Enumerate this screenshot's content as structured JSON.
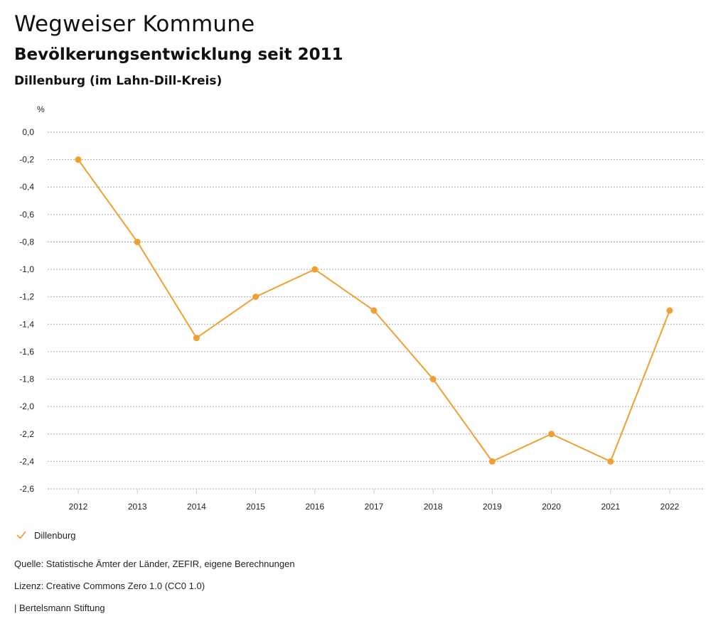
{
  "header": {
    "title": "Wegweiser Kommune",
    "subtitle": "Bevölkerungsentwicklung seit 2011",
    "region": "Dillenburg (im Lahn-Dill-Kreis)"
  },
  "colors": {
    "series": "#F0A030",
    "grid": "#aaaaaa",
    "text": "#222222"
  },
  "chart_data": {
    "type": "line",
    "title": "Bevölkerungsentwicklung seit 2011",
    "xlabel": "",
    "ylabel": "%",
    "ylim": [
      -2.6,
      0.0
    ],
    "yticks": [
      "0,0",
      "-0,2",
      "-0,4",
      "-0,6",
      "-0,8",
      "-1,0",
      "-1,2",
      "-1,4",
      "-1,6",
      "-1,8",
      "-2,0",
      "-2,2",
      "-2,4",
      "-2,6"
    ],
    "ytick_values": [
      0.0,
      -0.2,
      -0.4,
      -0.6,
      -0.8,
      -1.0,
      -1.2,
      -1.4,
      -1.6,
      -1.8,
      -2.0,
      -2.2,
      -2.4,
      -2.6
    ],
    "x": [
      "2012",
      "2013",
      "2014",
      "2015",
      "2016",
      "2017",
      "2018",
      "2019",
      "2020",
      "2021",
      "2022"
    ],
    "grid": true,
    "legend_position": "bottom-left",
    "series": [
      {
        "name": "Dillenburg",
        "values": [
          -0.2,
          -0.8,
          -1.5,
          -1.2,
          -1.0,
          -1.3,
          -1.8,
          -2.4,
          -2.2,
          -2.4,
          -1.3
        ]
      }
    ]
  },
  "legend": {
    "items": [
      {
        "label": "Dillenburg"
      }
    ]
  },
  "footer": {
    "source": "Quelle: Statistische Ämter der Länder, ZEFIR, eigene Berechnungen",
    "license": "Lizenz: Creative Commons Zero 1.0 (CC0 1.0)",
    "publisher": "| Bertelsmann Stiftung"
  }
}
